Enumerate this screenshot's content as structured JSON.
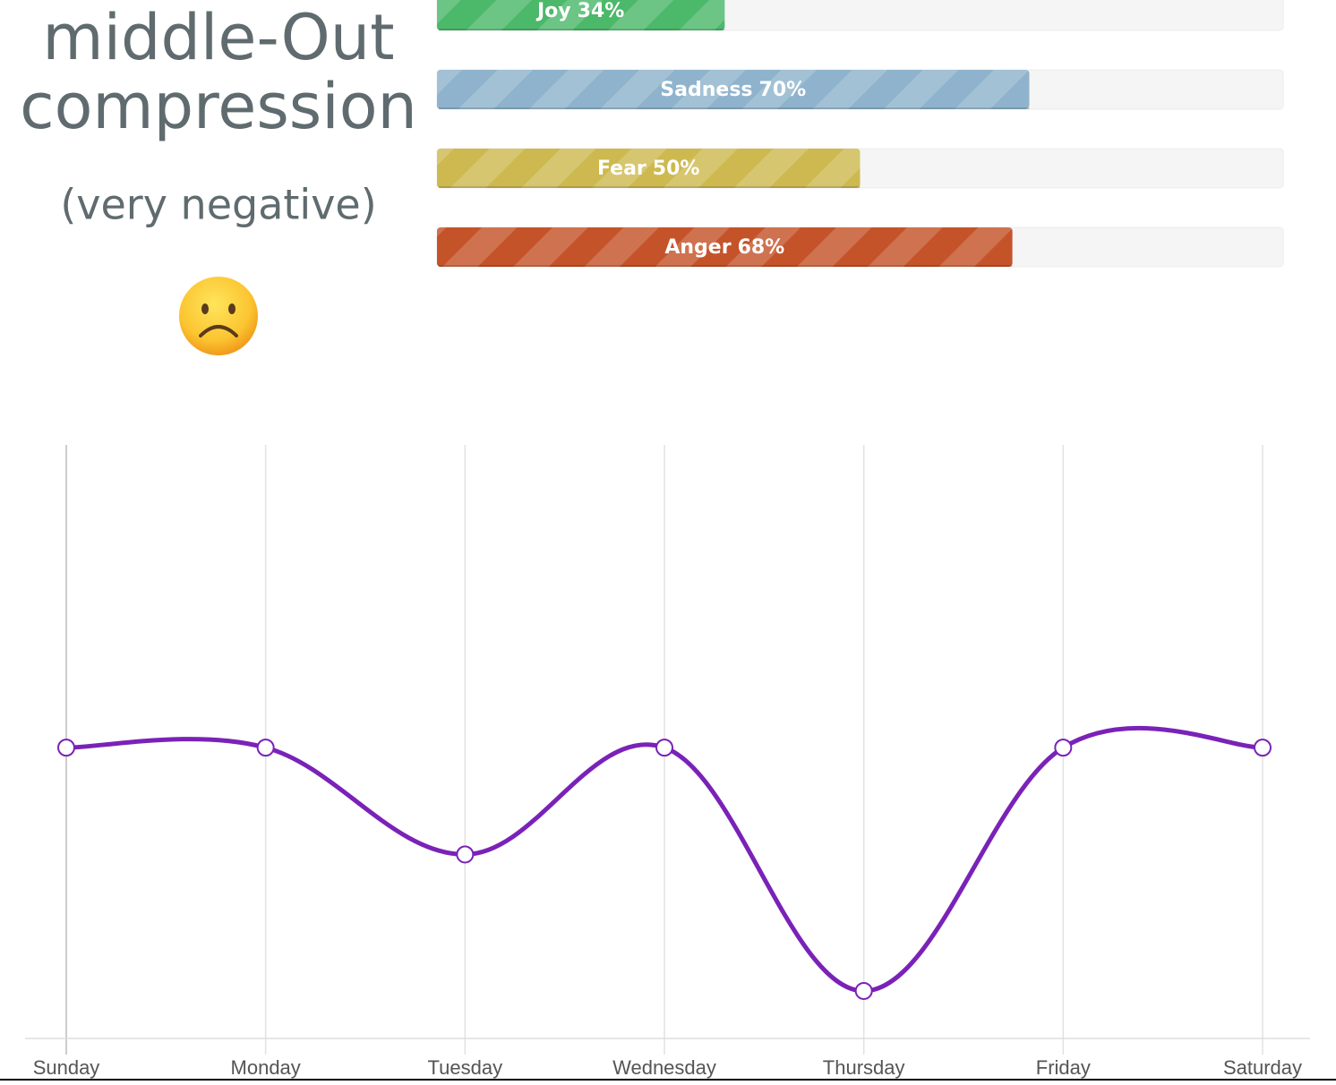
{
  "header": {
    "title_lines": [
      "middle-Out",
      "compression"
    ],
    "subtitle": "(very negative)"
  },
  "emotion_bars": {
    "type": "bar",
    "orientation": "horizontal",
    "categories": [
      "Joy",
      "Sadness",
      "Fear",
      "Anger"
    ],
    "values": [
      34,
      70,
      50,
      68
    ],
    "value_labels": [
      "34%",
      "70%",
      "50%",
      "68%"
    ],
    "colors": [
      "#4cb86a",
      "#8fb3cc",
      "#cdb94f",
      "#c5532a"
    ],
    "xlim": [
      0,
      100
    ]
  },
  "chart_data": {
    "type": "line",
    "categories": [
      "Sunday",
      "Monday",
      "Tuesday",
      "Wednesday",
      "Thursday",
      "Friday",
      "Saturday"
    ],
    "series": [
      {
        "color": "#7a22b8",
        "values": [
          49,
          49,
          31,
          49,
          8,
          49,
          49
        ]
      }
    ],
    "ylim": [
      0,
      100
    ],
    "grid": true
  }
}
